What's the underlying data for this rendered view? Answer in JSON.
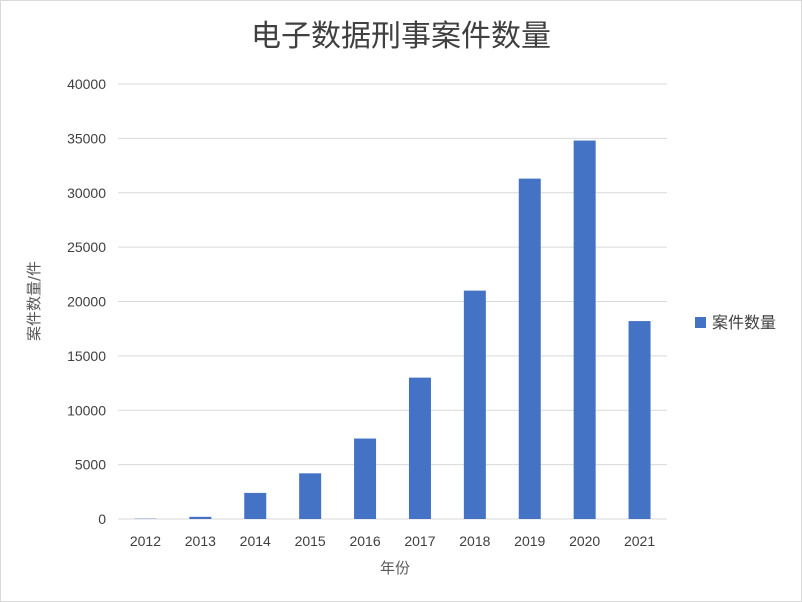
{
  "chart_data": {
    "type": "bar",
    "title": "电子数据刑事案件数量",
    "xlabel": "年份",
    "ylabel": "案件数量/件",
    "categories": [
      "2012",
      "2013",
      "2014",
      "2015",
      "2016",
      "2017",
      "2018",
      "2019",
      "2020",
      "2021"
    ],
    "series": [
      {
        "name": "案件数量",
        "color": "#4472c4",
        "values": [
          30,
          200,
          2400,
          4200,
          7400,
          13000,
          21000,
          31300,
          34800,
          18200
        ]
      }
    ],
    "ylim": [
      0,
      40000
    ],
    "yticks": [
      "0",
      "5000",
      "10000",
      "15000",
      "20000",
      "25000",
      "30000",
      "35000",
      "40000"
    ],
    "grid": true,
    "legend_position": "right"
  }
}
